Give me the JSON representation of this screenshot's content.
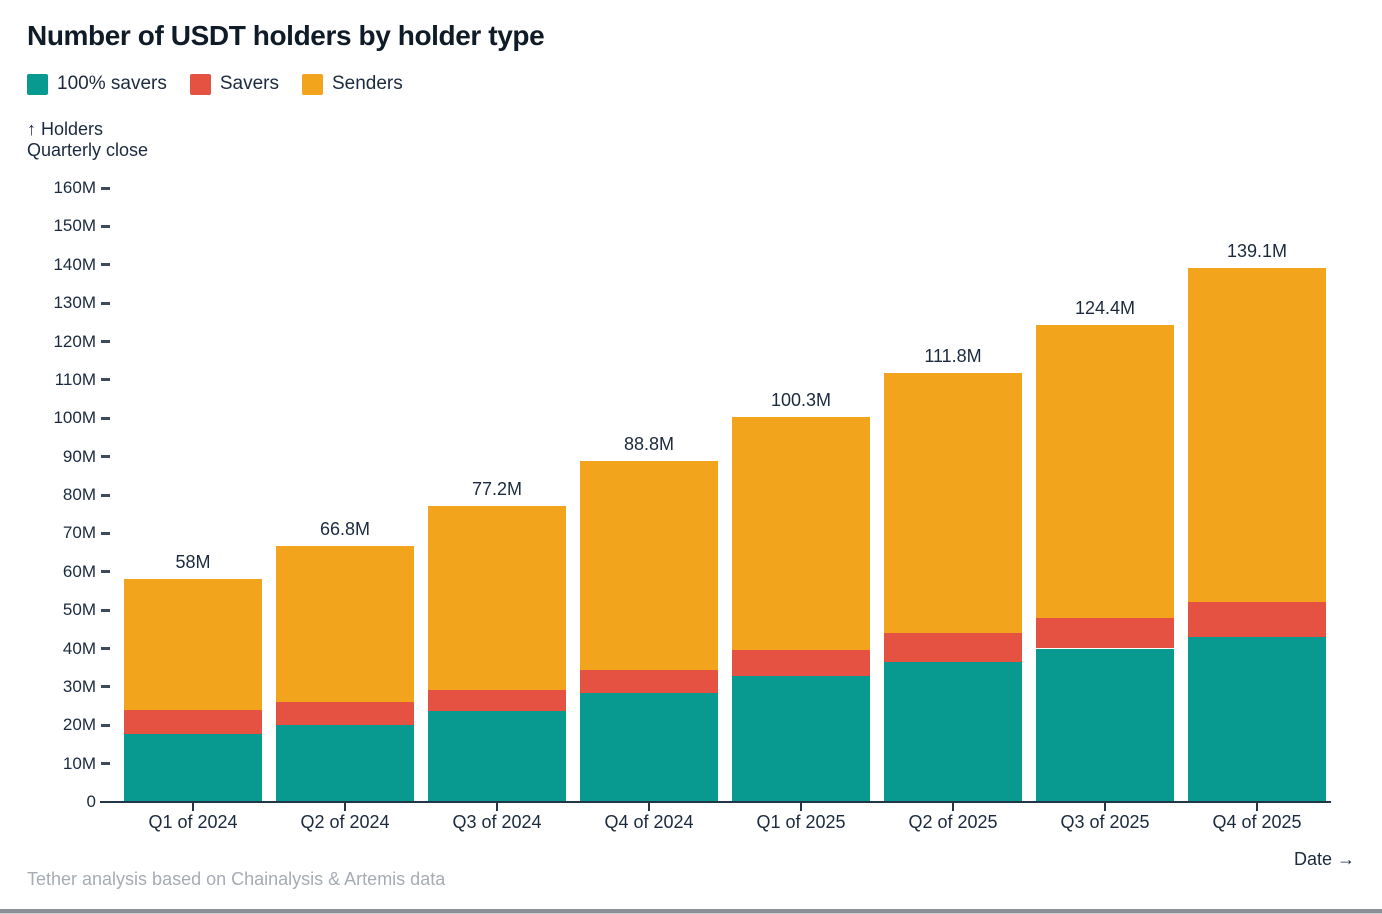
{
  "header": {
    "title": "Number of USDT holders by holder type"
  },
  "axis_note": {
    "line1": "↑ Holders",
    "line2": "Quarterly close"
  },
  "footer": {
    "source": "Tether analysis based on Chainalysis & Artemis data",
    "date_label": "Date →"
  },
  "colors": {
    "teal": "#089a91",
    "red": "#e65242",
    "orange": "#f3a41d",
    "text_dark": "#1b2a3e",
    "text_gray": "#a6acb3",
    "axis": "#233548"
  },
  "chart_data": {
    "type": "bar",
    "stacked": true,
    "title": "Number of USDT holders by holder type",
    "xlabel": "Date",
    "ylabel": "Holders, quarterly close",
    "ylim": [
      0,
      160
    ],
    "grid": false,
    "legend_position": "top",
    "units": "millions of holders",
    "y_ticks": {
      "values": [
        0,
        10,
        20,
        30,
        40,
        50,
        60,
        70,
        80,
        90,
        100,
        110,
        120,
        130,
        140,
        150,
        160
      ],
      "labels": [
        "0",
        "10M",
        "20M",
        "30M",
        "40M",
        "50M",
        "60M",
        "70M",
        "80M",
        "90M",
        "100M",
        "110M",
        "120M",
        "130M",
        "140M",
        "150M",
        "160M"
      ]
    },
    "categories": [
      "Q1 of 2024",
      "Q2 of 2024",
      "Q3 of 2024",
      "Q4 of 2024",
      "Q1 of 2025",
      "Q2 of 2025",
      "Q3 of 2025",
      "Q4 of 2025"
    ],
    "series": [
      {
        "name": "100% savers",
        "color": "#089a91",
        "values": [
          17.7,
          20.0,
          23.8,
          28.4,
          32.8,
          36.5,
          40.0,
          43.0
        ]
      },
      {
        "name": "Savers",
        "color": "#e65242",
        "values": [
          6.3,
          6.1,
          5.4,
          6.0,
          6.8,
          7.5,
          8.0,
          9.2
        ]
      },
      {
        "name": "Senders",
        "color": "#f3a41d",
        "values": [
          34.0,
          40.7,
          48.0,
          54.4,
          60.7,
          67.8,
          76.4,
          86.9
        ]
      }
    ],
    "totals": [
      58,
      66.8,
      77.2,
      88.8,
      100.3,
      111.8,
      124.4,
      139.1
    ],
    "total_labels": [
      "58M",
      "66.8M",
      "77.2M",
      "88.8M",
      "100.3M",
      "111.8M",
      "124.4M",
      "139.1M"
    ]
  }
}
